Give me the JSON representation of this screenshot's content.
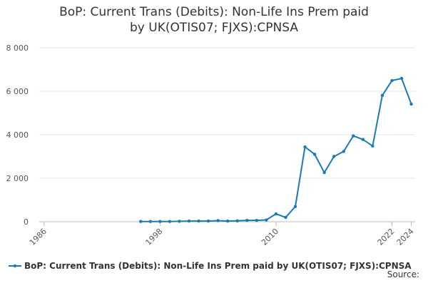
{
  "chart_data": {
    "type": "line",
    "title": "BoP: Current Trans (Debits): Non-Life Ins Prem paid by UK(OTIS07; FJXS):CPNSA",
    "x": [
      1996,
      1997,
      1998,
      1999,
      2000,
      2001,
      2002,
      2003,
      2004,
      2005,
      2006,
      2007,
      2008,
      2009,
      2010,
      2011,
      2012,
      2013,
      2014,
      2015,
      2016,
      2017,
      2018,
      2019,
      2020,
      2021,
      2022,
      2023,
      2024
    ],
    "series": [
      {
        "name": "BoP: Current Trans (Debits): Non-Life Ins Prem paid by UK(OTIS07; FJXS):CPNSA",
        "color": "#1a7ab5",
        "values": [
          10,
          10,
          10,
          10,
          20,
          30,
          30,
          30,
          50,
          30,
          40,
          60,
          60,
          80,
          360,
          200,
          700,
          3440,
          3100,
          2260,
          3000,
          3230,
          3950,
          3780,
          3480,
          5810,
          6490,
          6590,
          5410
        ]
      }
    ],
    "xlim": [
      1985.5,
      2024.4
    ],
    "xticks": [
      1986,
      1998,
      2010,
      2022,
      2024
    ],
    "ylim": [
      0,
      8000
    ],
    "yticks": [
      0,
      {
        "value": 2000,
        "label": "2 000"
      },
      {
        "value": 4000,
        "label": "4 000"
      },
      {
        "value": 6000,
        "label": "6 000"
      },
      {
        "value": 8000,
        "label": "8 000"
      }
    ],
    "grid": true,
    "legend": "bottom",
    "source": "Source:"
  }
}
